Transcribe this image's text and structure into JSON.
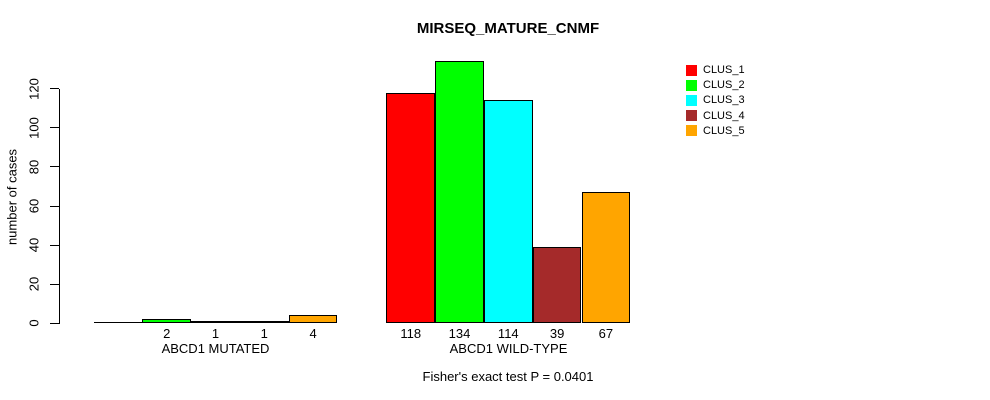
{
  "chart_data": {
    "type": "bar",
    "title": "MIRSEQ_MATURE_CNMF",
    "ylabel": "number of cases",
    "xlabel": "",
    "groups": [
      "ABCD1 MUTATED",
      "ABCD1 WILD-TYPE"
    ],
    "series": [
      {
        "name": "CLUS_1",
        "color": "#ff0000",
        "values": [
          0,
          118
        ]
      },
      {
        "name": "CLUS_2",
        "color": "#00ff00",
        "values": [
          2,
          134
        ]
      },
      {
        "name": "CLUS_3",
        "color": "#00ffff",
        "values": [
          1,
          114
        ]
      },
      {
        "name": "CLUS_4",
        "color": "#a52a2a",
        "values": [
          1,
          39
        ]
      },
      {
        "name": "CLUS_5",
        "color": "#ffa500",
        "values": [
          4,
          67
        ]
      }
    ],
    "bar_labels": [
      [
        "",
        "2",
        "1",
        "1",
        "4"
      ],
      [
        "118",
        "134",
        "114",
        "39",
        "67"
      ]
    ],
    "y_ticks": [
      0,
      20,
      40,
      60,
      80,
      100,
      120
    ],
    "ylim": [
      0,
      140
    ],
    "grid": false,
    "legend_position": "top-right",
    "annotation": "Fisher's exact test P = 0.0401",
    "axis_color": "#000000",
    "background_color": "#ffffff"
  }
}
